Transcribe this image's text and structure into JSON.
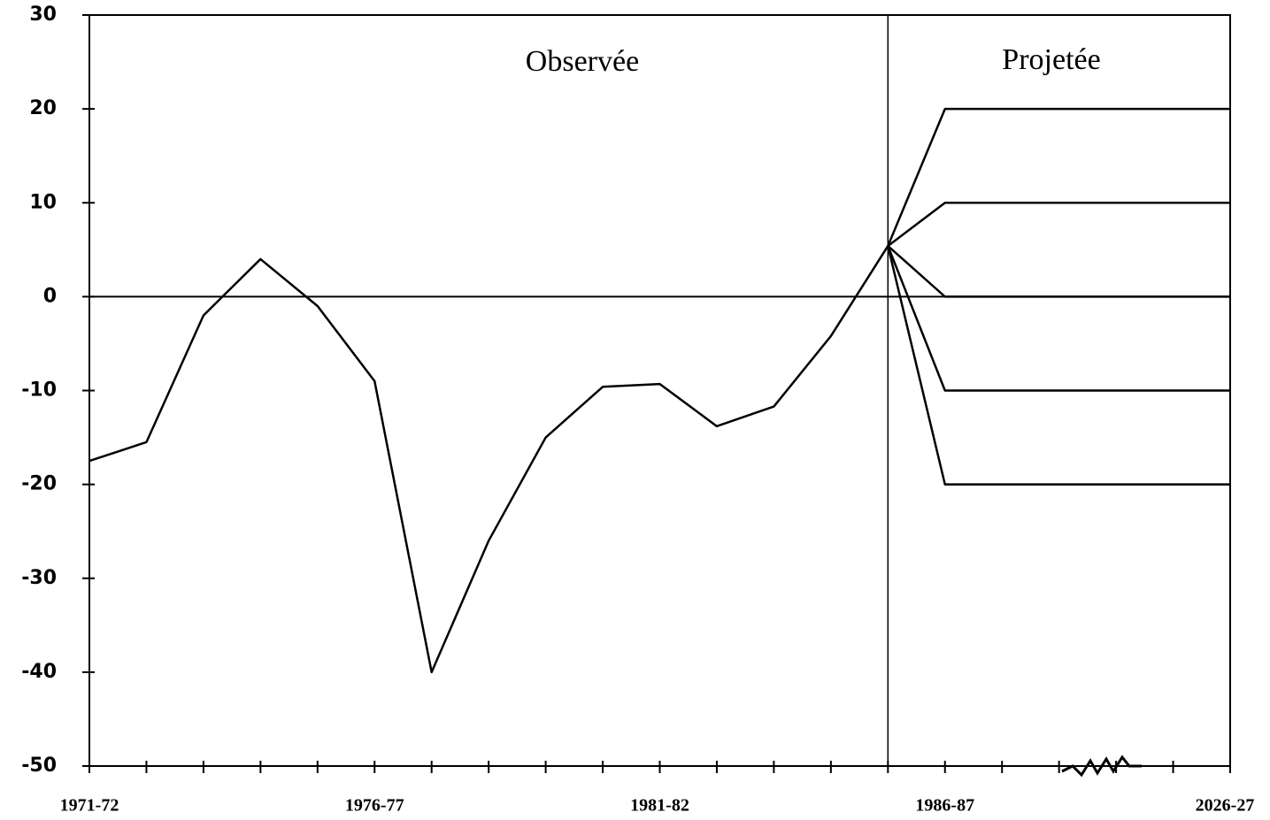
{
  "chart_data": {
    "type": "line",
    "annotations": [
      "Observée",
      "Projetée"
    ],
    "categories": [
      "1971-72",
      null,
      null,
      null,
      null,
      "1976-77",
      null,
      null,
      null,
      null,
      "1981-82",
      null,
      null,
      null,
      null,
      "1986-87",
      null,
      null,
      null,
      null,
      "2026-27"
    ],
    "series": [
      {
        "color": "#000000",
        "values": [
          -17.5,
          -15.5,
          -2,
          4,
          -1,
          -9,
          -40,
          -26,
          -15,
          -9.6,
          -9.3,
          -13.8,
          -11.7,
          -4.2,
          5.4,
          null,
          null,
          null,
          null,
          null,
          null
        ]
      },
      {
        "color": "#000000",
        "values": [
          null,
          null,
          null,
          null,
          null,
          null,
          null,
          null,
          null,
          null,
          null,
          null,
          null,
          null,
          5.4,
          20,
          20,
          20,
          20,
          20,
          20
        ]
      },
      {
        "color": "#000000",
        "values": [
          null,
          null,
          null,
          null,
          null,
          null,
          null,
          null,
          null,
          null,
          null,
          null,
          null,
          null,
          5.4,
          10,
          10,
          10,
          10,
          10,
          10
        ]
      },
      {
        "color": "#000000",
        "values": [
          null,
          null,
          null,
          null,
          null,
          null,
          null,
          null,
          null,
          null,
          null,
          null,
          null,
          null,
          5.4,
          0,
          0,
          0,
          0,
          0,
          0
        ]
      },
      {
        "color": "#000000",
        "values": [
          null,
          null,
          null,
          null,
          null,
          null,
          null,
          null,
          null,
          null,
          null,
          null,
          null,
          null,
          5.4,
          -10,
          -10,
          -10,
          -10,
          -10,
          -10
        ]
      },
      {
        "color": "#000000",
        "values": [
          null,
          null,
          null,
          null,
          null,
          null,
          null,
          null,
          null,
          null,
          null,
          null,
          null,
          null,
          5.4,
          -20,
          -20,
          -20,
          -20,
          -20,
          -20
        ]
      }
    ],
    "ylim": [
      -50,
      30
    ],
    "yticks": [
      30,
      20,
      10,
      0,
      -10,
      -20,
      -30,
      -40,
      -50
    ]
  }
}
